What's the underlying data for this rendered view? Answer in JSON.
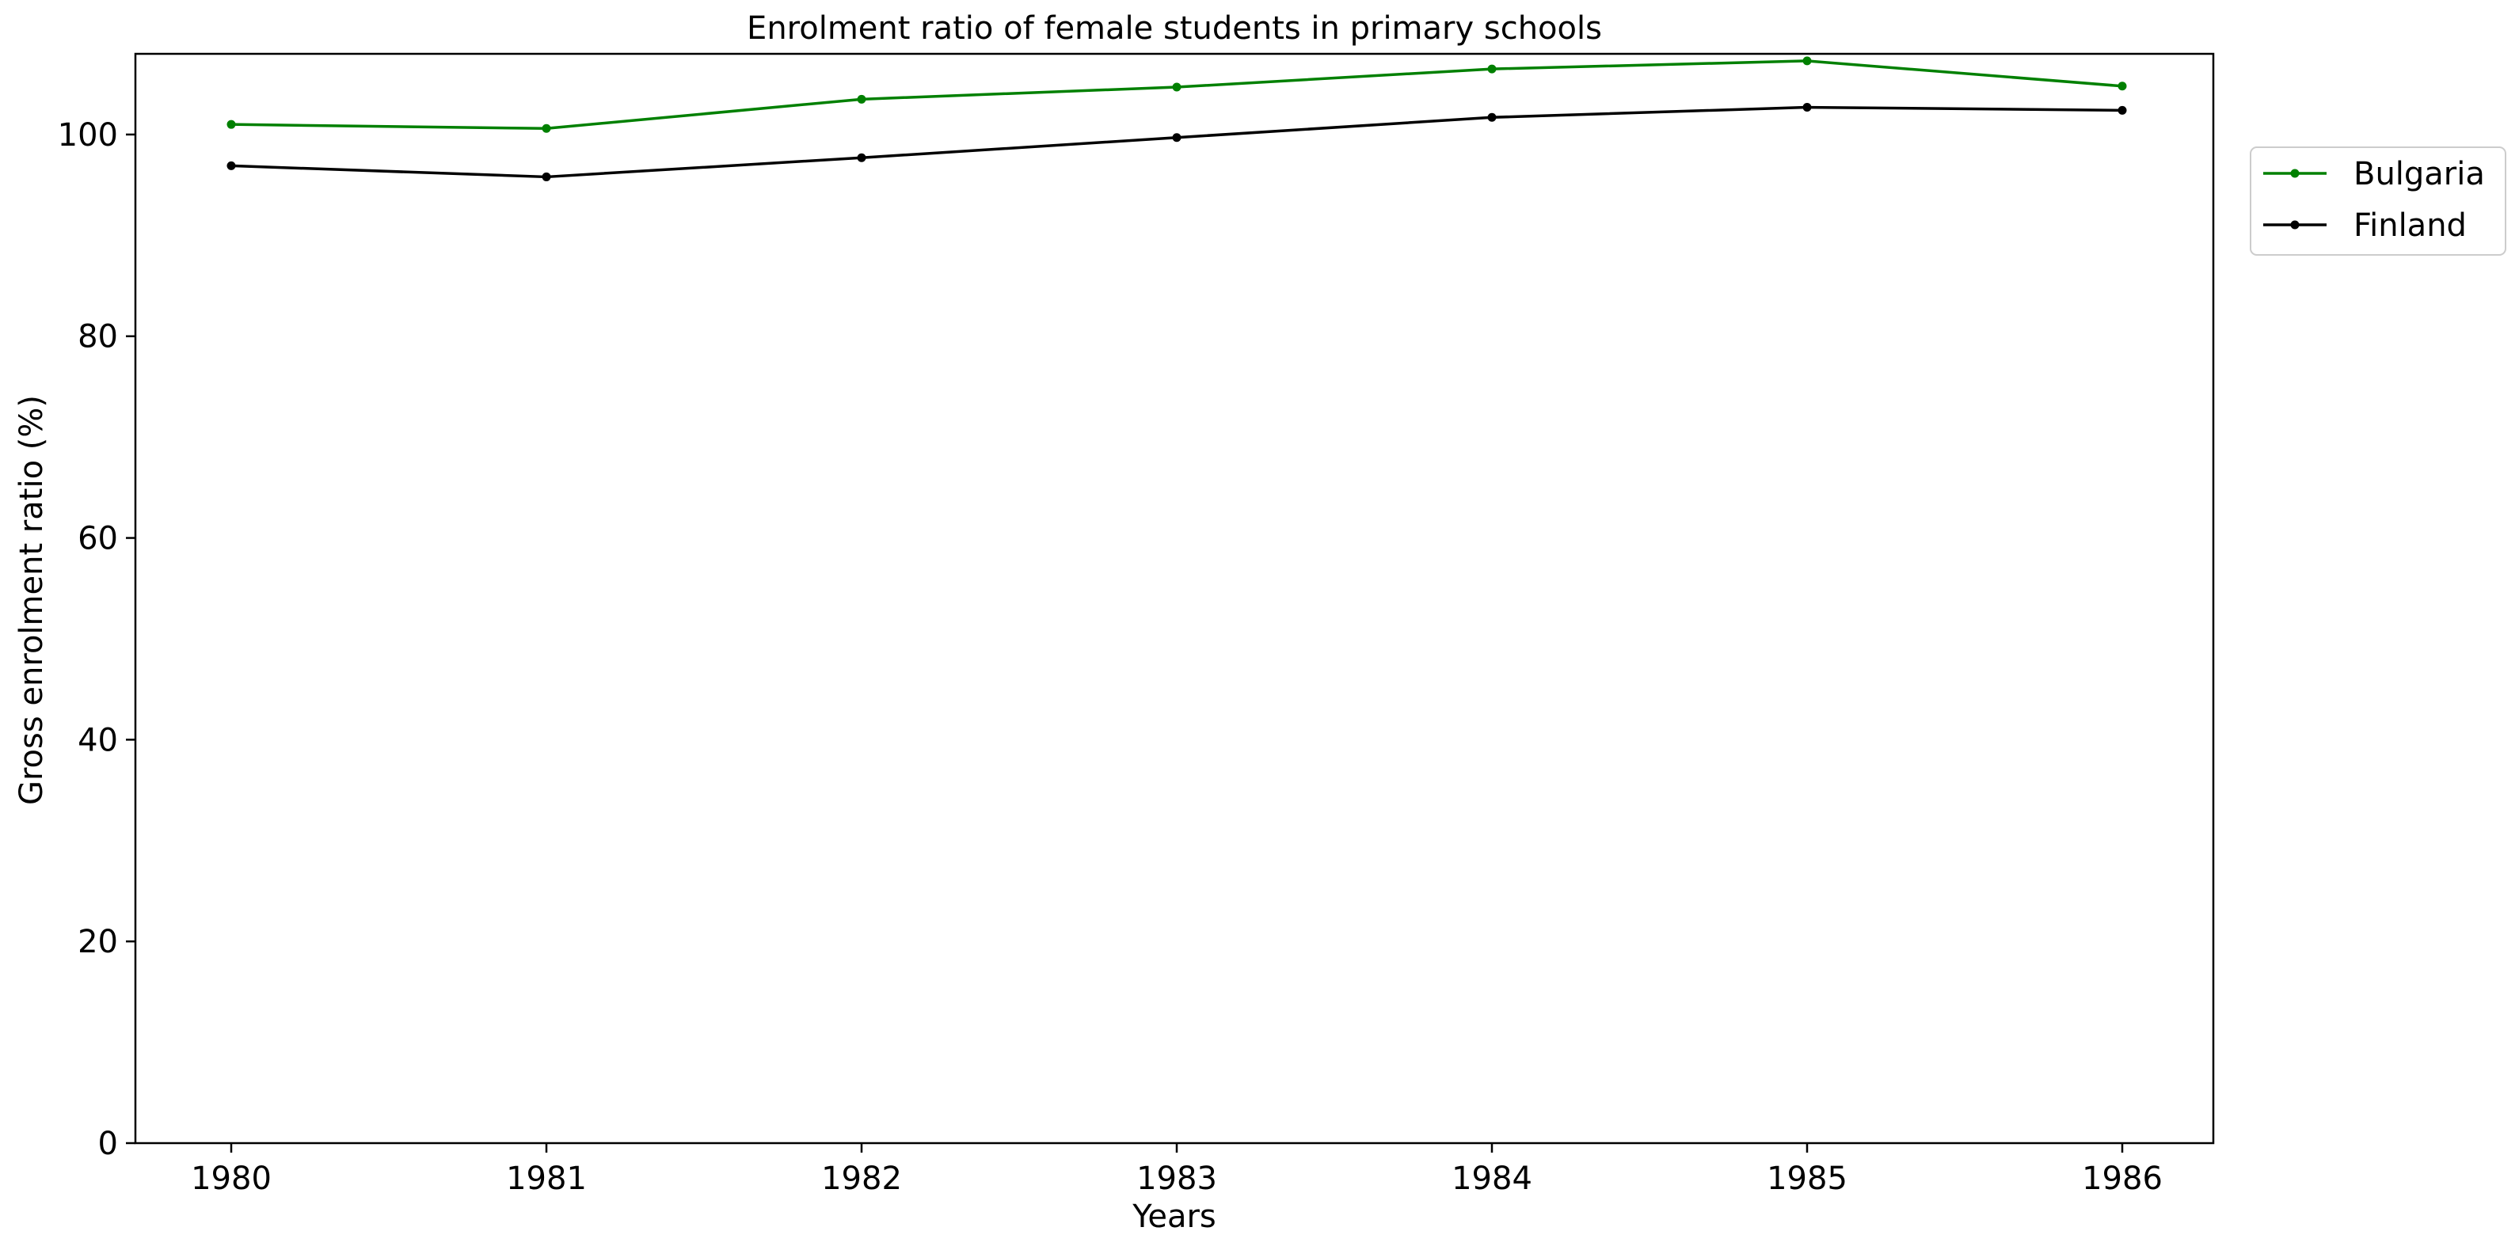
{
  "chart_data": {
    "type": "line",
    "title": "Enrolment ratio of female students in primary schools",
    "xlabel": "Years",
    "ylabel": "Gross enrolment ratio (%)",
    "x": [
      "1980",
      "1981",
      "1982",
      "1983",
      "1984",
      "1985",
      "1986"
    ],
    "ylim": [
      0,
      108
    ],
    "yticks": [
      0,
      20,
      40,
      60,
      80,
      100
    ],
    "grid": false,
    "legend_position": "outside-right",
    "series": [
      {
        "name": "Bulgaria",
        "color": "#008000",
        "marker": "dot",
        "values": [
          101.0,
          100.6,
          103.5,
          104.7,
          106.5,
          107.3,
          104.8
        ]
      },
      {
        "name": "Finland",
        "color": "#000000",
        "marker": "dot",
        "values": [
          96.9,
          95.8,
          97.7,
          99.7,
          101.7,
          102.7,
          102.4
        ]
      }
    ]
  }
}
